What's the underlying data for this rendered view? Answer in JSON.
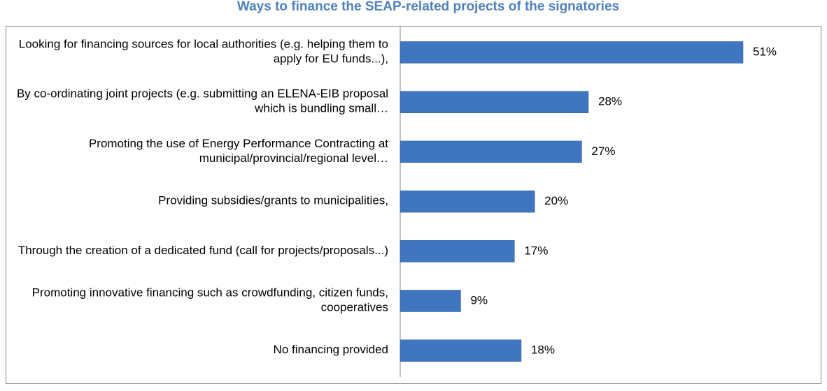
{
  "chart_data": {
    "type": "bar",
    "orientation": "horizontal",
    "title": "Ways to finance the SEAP-related projects of the signatories",
    "categories": [
      "Looking for financing sources for local authorities (e.g. helping them to apply for EU funds...),",
      "By co-ordinating joint projects (e.g. submitting an ELENA-EIB proposal which is bundling small…",
      "Promoting the use of Energy Performance Contracting at municipal/provincial/regional level…",
      "Providing subsidies/grants to municipalities,",
      "Through the creation of a dedicated fund (call for projects/proposals...)",
      "Promoting innovative financing such as crowdfunding, citizen funds, cooperatives",
      "No financing provided"
    ],
    "values": [
      51,
      28,
      27,
      20,
      17,
      9,
      18
    ],
    "value_labels": [
      "51%",
      "28%",
      "27%",
      "20%",
      "17%",
      "9%",
      "18%"
    ],
    "color": "#3f76bf"
  }
}
